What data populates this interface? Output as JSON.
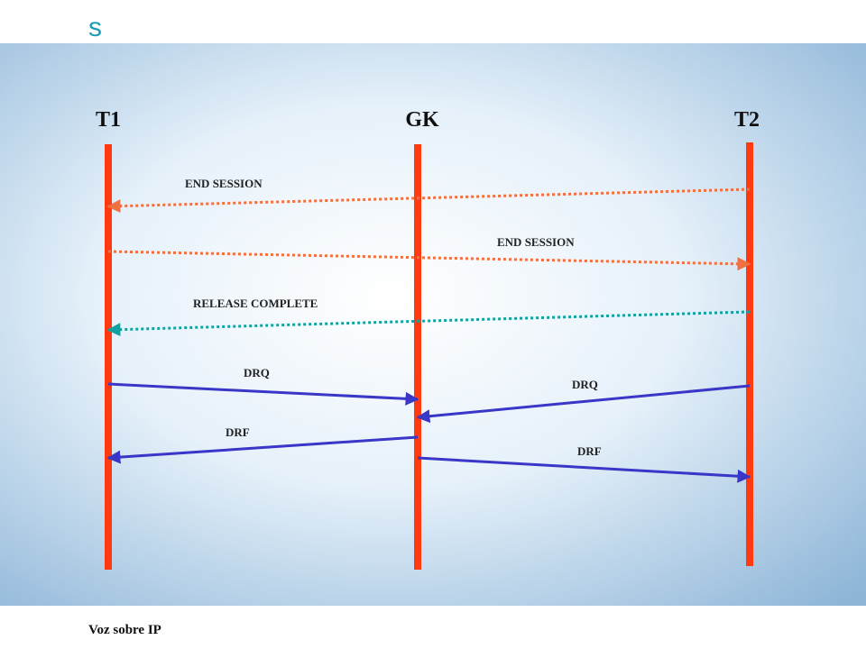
{
  "header": {
    "title": "s"
  },
  "entities": [
    "T1",
    "GK",
    "T2"
  ],
  "messages": [
    "END SESSION",
    "END SESSION",
    "RELEASE COMPLETE",
    "DRQ",
    "DRQ",
    "DRF",
    "DRF"
  ],
  "footer": {
    "text": "Voz sobre IP"
  }
}
